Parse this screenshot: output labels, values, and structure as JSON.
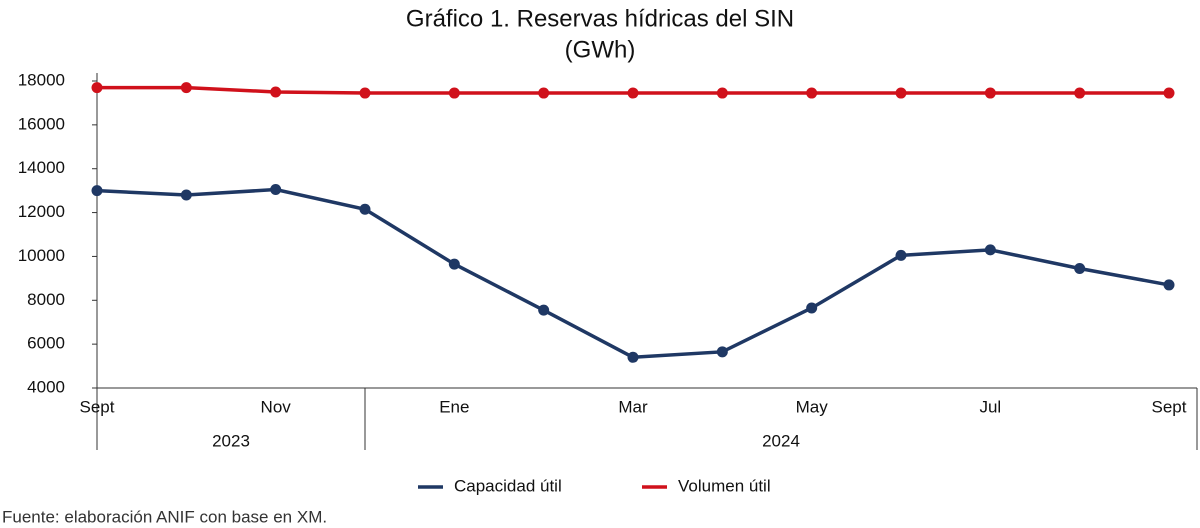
{
  "chart_data": {
    "type": "line",
    "title": "Gráfico 1. Reservas hídricas del SIN",
    "subtitle": "(GWh)",
    "categories": [
      "Sept",
      null,
      "Nov",
      null,
      "Ene",
      null,
      "Mar",
      null,
      "May",
      null,
      "Jul",
      null,
      "Sept"
    ],
    "years": [
      {
        "label": "2023",
        "count": 4
      },
      {
        "label": "2024",
        "count": 9
      }
    ],
    "series": [
      {
        "name": "Capacidad útil",
        "color": "#1f3864",
        "values": [
          13000,
          12800,
          13050,
          12150,
          9650,
          7550,
          5400,
          5650,
          7650,
          10050,
          10300,
          9450,
          8700
        ]
      },
      {
        "name": "Volumen útil",
        "color": "#d0111b",
        "values": [
          17700,
          17700,
          17500,
          17450,
          17450,
          17450,
          17450,
          17450,
          17450,
          17450,
          17450,
          17450,
          17450
        ]
      }
    ],
    "ylim": [
      4000,
      18000
    ],
    "yticks": [
      4000,
      6000,
      8000,
      10000,
      12000,
      14000,
      16000,
      18000
    ],
    "legend": "bottom",
    "source": "Fuente: elaboración ANIF con base en XM."
  }
}
